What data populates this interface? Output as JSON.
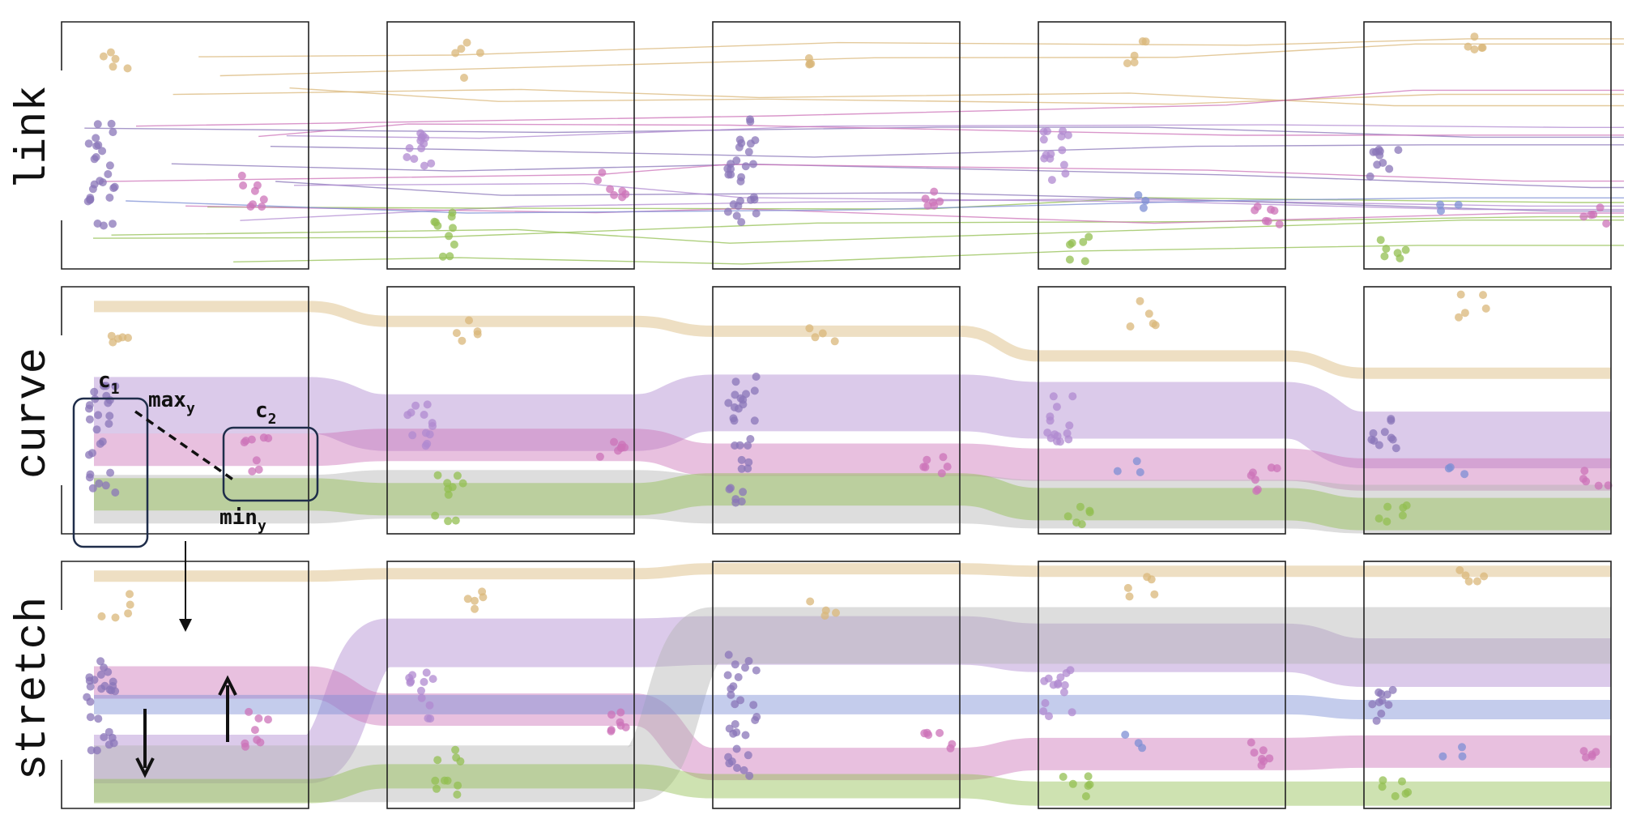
{
  "row_labels": [
    "link",
    "curve",
    "stretch"
  ],
  "annotations": {
    "c1": {
      "main": "c",
      "sub": "1"
    },
    "c2": {
      "main": "c",
      "sub": "2"
    },
    "maxy": {
      "main": "max",
      "sub": "y"
    },
    "miny": {
      "main": "min",
      "sub": "y"
    }
  },
  "colors": {
    "gold": "#d9b77a",
    "purple_dark": "#8a75b8",
    "purple_light": "#b08ad0",
    "magenta": "#cc73b8",
    "green": "#93bf52",
    "blue": "#7d8fd4",
    "grey": "#b4b4b4",
    "annotation_box": "#1f2d4a"
  },
  "panel_count": 5,
  "icons": [
    "down-arrow-icon",
    "up-arrow-icon",
    "down-arrow-icon"
  ]
}
